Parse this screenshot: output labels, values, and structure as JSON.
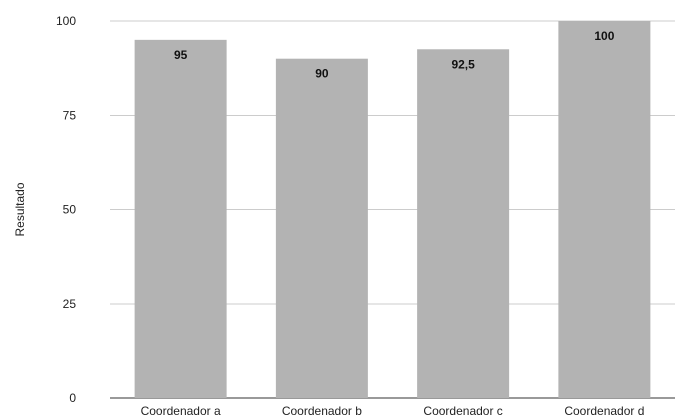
{
  "chart_data": {
    "type": "bar",
    "categories": [
      "Coordenador a",
      "Coordenador b",
      "Coordenador c",
      "Coordenador d"
    ],
    "values": [
      95,
      90,
      92.5,
      100
    ],
    "data_labels": [
      "95",
      "90",
      "92,5",
      "100"
    ],
    "ylabel": "Resultado",
    "ylim": [
      0,
      100
    ],
    "yticks": [
      0,
      25,
      50,
      75,
      100
    ],
    "ytick_labels": [
      "0",
      "25",
      "50",
      "75",
      "100"
    ],
    "grid": true,
    "legend": "none",
    "colors": {
      "bar": "#b3b3b3",
      "grid": "#cccccc",
      "baseline": "#333333"
    }
  }
}
